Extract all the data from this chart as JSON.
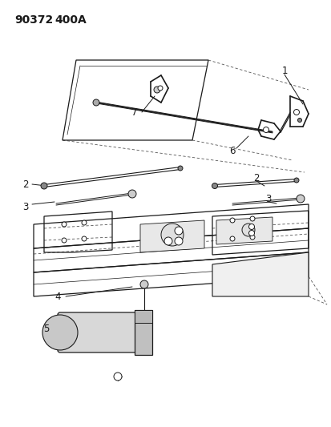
{
  "title_part1": "90372",
  "title_part2": "400A",
  "bg": "#ffffff",
  "lc": "#1a1a1a",
  "fig_w": 4.14,
  "fig_h": 5.33,
  "dpi": 100,
  "lbl_fs": 8.5
}
